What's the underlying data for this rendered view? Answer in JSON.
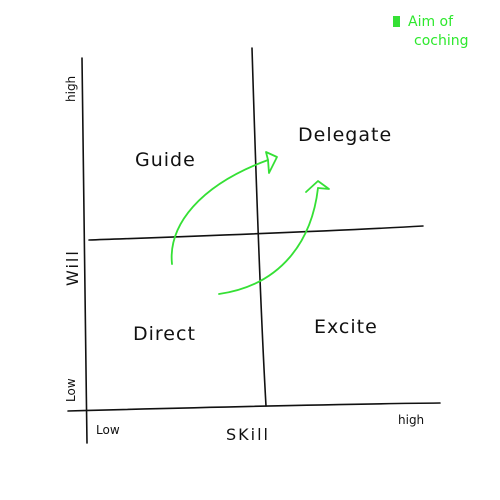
{
  "legend": {
    "line1": "Aim of",
    "line2": "coching",
    "color": "#35e035",
    "marker": "filled-square-icon"
  },
  "quadrants": {
    "top_left": "Guide",
    "top_right": "Delegate",
    "bottom_left": "Direct",
    "bottom_right": "Excite"
  },
  "axes": {
    "x_title": "SKill",
    "x_low": "Low",
    "x_high": "high",
    "y_title": "Will",
    "y_low": "Low",
    "y_high": "high"
  },
  "colors": {
    "ink": "#111111",
    "arrows": "#35e035"
  }
}
